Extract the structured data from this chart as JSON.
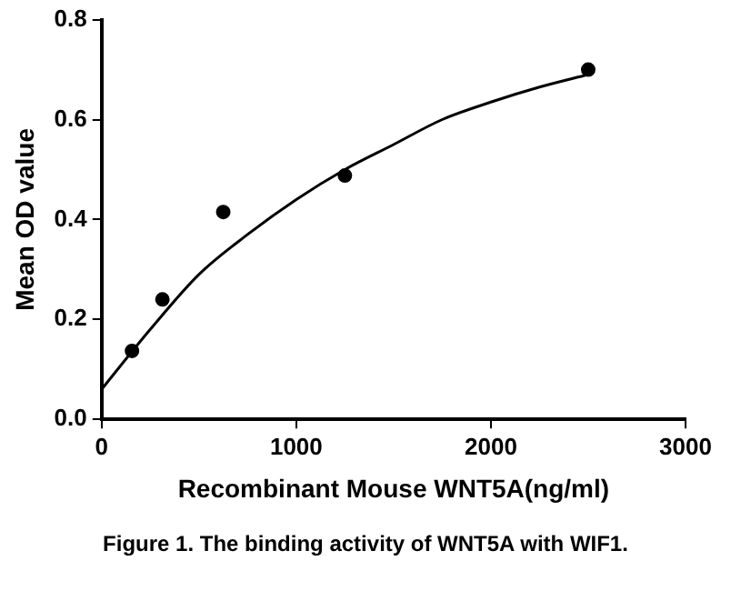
{
  "chart_data": {
    "type": "scatter",
    "xlabel": "Recombinant Mouse WNT5A(ng/ml)",
    "ylabel": "Mean OD value",
    "annotations": [
      "Figure 1. The binding activity of WNT5A with WIF1."
    ],
    "series": [
      {
        "marker": "circle",
        "color": "#000000",
        "x": [
          156.25,
          312.5,
          625,
          1250,
          2500
        ],
        "values": [
          0.137,
          0.24,
          0.415,
          0.488,
          0.7
        ]
      },
      {
        "type": "line",
        "marker": "none",
        "color": "#000000",
        "x": [
          0,
          250,
          500,
          750,
          1000,
          1250,
          1500,
          1750,
          2000,
          2250,
          2500
        ],
        "values": [
          0.06,
          0.18,
          0.29,
          0.37,
          0.44,
          0.5,
          0.55,
          0.6,
          0.635,
          0.665,
          0.69
        ]
      }
    ],
    "xlim": [
      0,
      3000
    ],
    "ylim": [
      0,
      0.8
    ],
    "xticks": [
      0,
      1000,
      2000,
      3000
    ],
    "yticks": [
      {
        "value": 0,
        "label": "0.0"
      },
      {
        "value": 0.2,
        "label": "0.2"
      },
      {
        "value": 0.4,
        "label": "0.4"
      },
      {
        "value": 0.6,
        "label": "0.6"
      },
      {
        "value": 0.8,
        "label": "0.8"
      }
    ],
    "grid": false,
    "legend": false
  }
}
